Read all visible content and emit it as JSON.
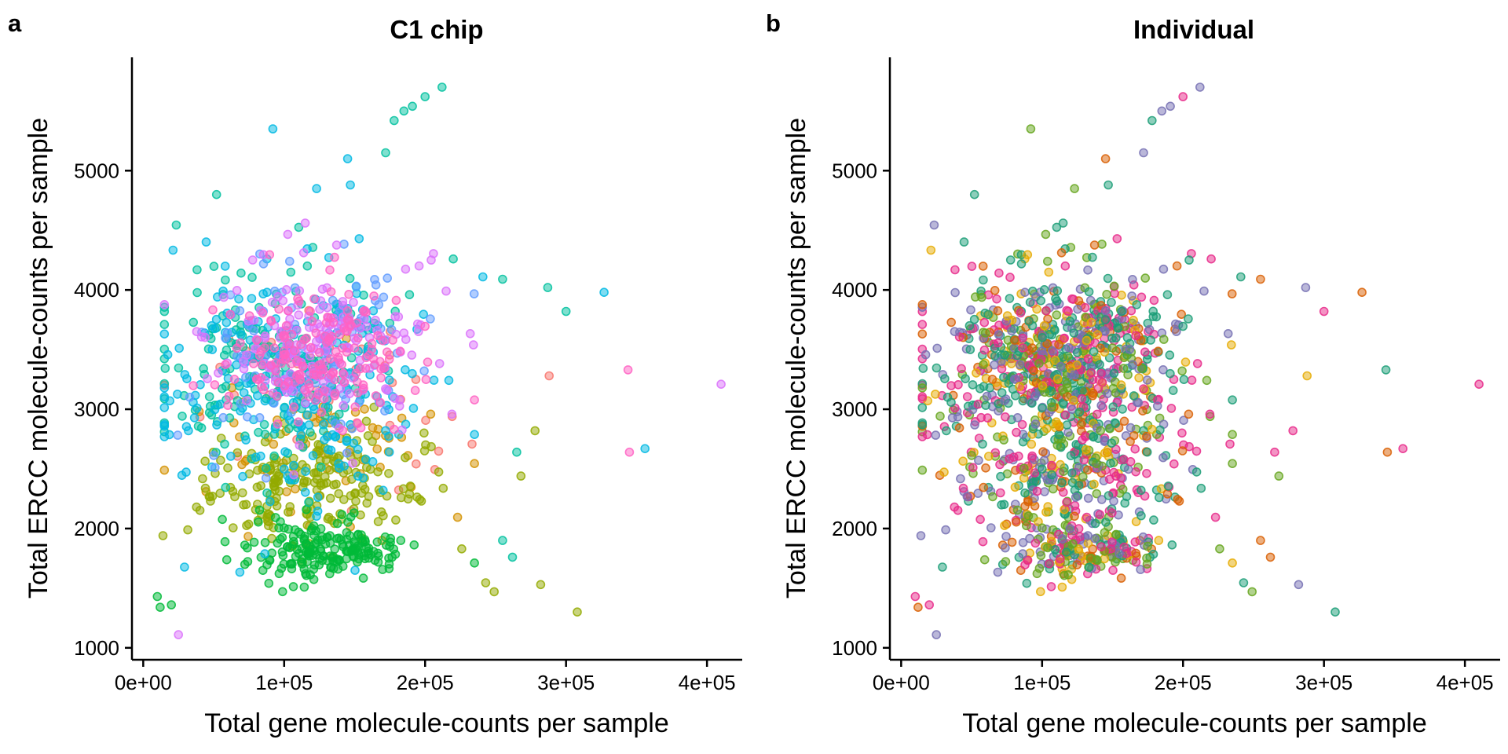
{
  "chart_data": [
    {
      "type": "scatter",
      "panel": "a",
      "title": "C1 chip",
      "xlabel": "Total gene molecule-counts per sample",
      "ylabel": "Total ERCC molecule-counts per sample",
      "xlim": [
        -8000,
        425000
      ],
      "ylim": [
        900,
        5950
      ],
      "xticks": [
        0,
        100000,
        200000,
        300000,
        400000
      ],
      "xtick_labels": [
        "0e+00",
        "1e+05",
        "2e+05",
        "3e+05",
        "4e+05"
      ],
      "yticks": [
        1000,
        2000,
        3000,
        4000,
        5000
      ],
      "ytick_labels": [
        "1000",
        "2000",
        "3000",
        "4000",
        "5000"
      ],
      "grid": false,
      "legend": "none",
      "color_by": "C1 chip",
      "point_alpha": 0.5,
      "palette": [
        "#F8766D",
        "#D39200",
        "#93AA00",
        "#00BA38",
        "#00C19F",
        "#00B9E3",
        "#619CFF",
        "#DB72FB",
        "#FF61C3"
      ],
      "clusters": [
        {
          "color_index": 0,
          "n": 40,
          "x_mean": 130000,
          "x_sd": 45000,
          "y_mean": 3050,
          "y_sd": 400
        },
        {
          "color_index": 1,
          "n": 70,
          "x_mean": 125000,
          "x_sd": 45000,
          "y_mean": 2700,
          "y_sd": 300
        },
        {
          "color_index": 2,
          "n": 200,
          "x_mean": 115000,
          "x_sd": 38000,
          "y_mean": 2350,
          "y_sd": 220
        },
        {
          "color_index": 3,
          "n": 190,
          "x_mean": 125000,
          "x_sd": 28000,
          "y_mean": 1820,
          "y_sd": 130
        },
        {
          "color_index": 4,
          "n": 190,
          "x_mean": 90000,
          "x_sd": 40000,
          "y_mean": 3350,
          "y_sd": 420
        },
        {
          "color_index": 5,
          "n": 230,
          "x_mean": 105000,
          "x_sd": 45000,
          "y_mean": 3200,
          "y_sd": 500
        },
        {
          "color_index": 6,
          "n": 90,
          "x_mean": 120000,
          "x_sd": 40000,
          "y_mean": 3350,
          "y_sd": 400
        },
        {
          "color_index": 7,
          "n": 170,
          "x_mean": 125000,
          "x_sd": 40000,
          "y_mean": 3550,
          "y_sd": 330
        },
        {
          "color_index": 8,
          "n": 170,
          "x_mean": 125000,
          "x_sd": 32000,
          "y_mean": 3450,
          "y_sd": 290
        }
      ],
      "labeled_outliers": [
        {
          "x": 212000,
          "y": 5700,
          "color_index": 4
        },
        {
          "x": 200000,
          "y": 5620,
          "color_index": 4
        },
        {
          "x": 191000,
          "y": 5540,
          "color_index": 4
        },
        {
          "x": 185000,
          "y": 5500,
          "color_index": 4
        },
        {
          "x": 178000,
          "y": 5420,
          "color_index": 4
        },
        {
          "x": 172000,
          "y": 5150,
          "color_index": 4
        },
        {
          "x": 92000,
          "y": 5350,
          "color_index": 5
        },
        {
          "x": 145000,
          "y": 5100,
          "color_index": 5
        },
        {
          "x": 147000,
          "y": 4880,
          "color_index": 5
        },
        {
          "x": 123000,
          "y": 4850,
          "color_index": 5
        },
        {
          "x": 52000,
          "y": 4800,
          "color_index": 4
        },
        {
          "x": 410000,
          "y": 3210,
          "color_index": 7
        },
        {
          "x": 356000,
          "y": 2670,
          "color_index": 5
        },
        {
          "x": 344000,
          "y": 3330,
          "color_index": 8
        },
        {
          "x": 345000,
          "y": 2640,
          "color_index": 8
        },
        {
          "x": 327000,
          "y": 3980,
          "color_index": 5
        },
        {
          "x": 300000,
          "y": 3820,
          "color_index": 4
        },
        {
          "x": 287000,
          "y": 4020,
          "color_index": 4
        },
        {
          "x": 288000,
          "y": 3280,
          "color_index": 0
        },
        {
          "x": 308000,
          "y": 1300,
          "color_index": 2
        },
        {
          "x": 282000,
          "y": 1530,
          "color_index": 2
        },
        {
          "x": 278000,
          "y": 2820,
          "color_index": 2
        },
        {
          "x": 268000,
          "y": 2440,
          "color_index": 2
        },
        {
          "x": 262000,
          "y": 1760,
          "color_index": 4
        },
        {
          "x": 255000,
          "y": 1900,
          "color_index": 4
        },
        {
          "x": 249000,
          "y": 1470,
          "color_index": 2
        },
        {
          "x": 243000,
          "y": 1545,
          "color_index": 2
        },
        {
          "x": 226000,
          "y": 1830,
          "color_index": 2
        },
        {
          "x": 265000,
          "y": 2640,
          "color_index": 4
        },
        {
          "x": 255000,
          "y": 4090,
          "color_index": 4
        },
        {
          "x": 241000,
          "y": 4110,
          "color_index": 5
        },
        {
          "x": 220000,
          "y": 4260,
          "color_index": 4
        },
        {
          "x": 25000,
          "y": 1110,
          "color_index": 7
        },
        {
          "x": 10000,
          "y": 1430,
          "color_index": 3
        },
        {
          "x": 12000,
          "y": 1340,
          "color_index": 3
        },
        {
          "x": 20000,
          "y": 1360,
          "color_index": 3
        },
        {
          "x": 14000,
          "y": 1940,
          "color_index": 2
        }
      ]
    },
    {
      "type": "scatter",
      "panel": "b",
      "title": "Individual",
      "xlabel": "Total gene molecule-counts per sample",
      "ylabel": "Total ERCC molecule-counts per sample",
      "xlim": [
        -8000,
        425000
      ],
      "ylim": [
        900,
        5950
      ],
      "xticks": [
        0,
        100000,
        200000,
        300000,
        400000
      ],
      "xtick_labels": [
        "0e+00",
        "1e+05",
        "2e+05",
        "3e+05",
        "4e+05"
      ],
      "yticks": [
        1000,
        2000,
        3000,
        4000,
        5000
      ],
      "ytick_labels": [
        "1000",
        "2000",
        "3000",
        "4000",
        "5000"
      ],
      "grid": false,
      "legend": "none",
      "color_by": "Individual",
      "point_alpha": 0.5,
      "palette": [
        "#1B9E77",
        "#D95F02",
        "#7570B3",
        "#E7298A",
        "#66A61E",
        "#E6AB02"
      ],
      "same_points_as_panel": "a",
      "recolor_weights": [
        0.22,
        0.12,
        0.18,
        0.2,
        0.16,
        0.12
      ]
    }
  ]
}
